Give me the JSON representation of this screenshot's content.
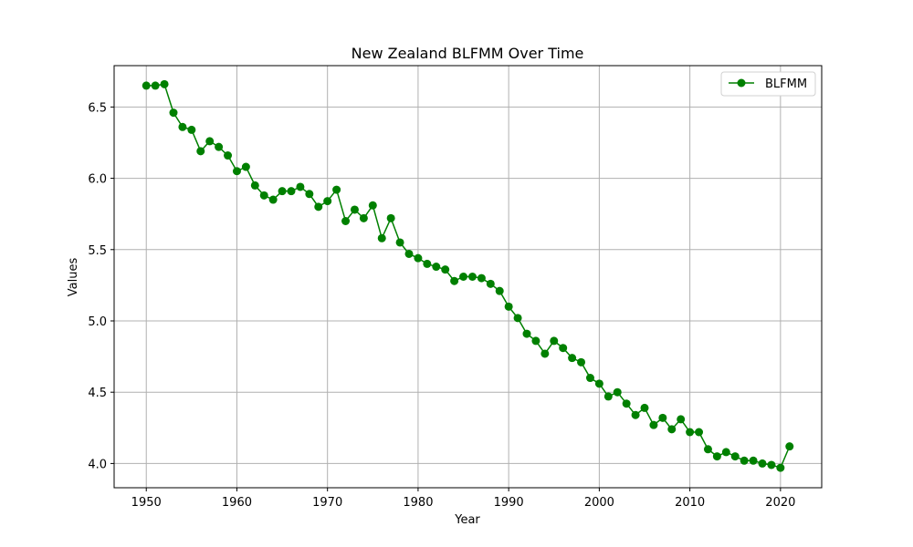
{
  "chart_data": {
    "type": "line",
    "title": "New Zealand BLFMM Over Time",
    "xlabel": "Year",
    "ylabel": "Values",
    "xlim": [
      1946.45,
      2024.55
    ],
    "ylim": [
      3.83,
      6.79
    ],
    "grid": true,
    "legend_position": "top-right",
    "x_ticks": [
      1950,
      1960,
      1970,
      1980,
      1990,
      2000,
      2010,
      2020
    ],
    "y_ticks": [
      4.0,
      4.5,
      5.0,
      5.5,
      6.0,
      6.5
    ],
    "series": [
      {
        "name": "BLFMM",
        "color": "#008000",
        "marker": "circle",
        "x": [
          1950,
          1951,
          1952,
          1953,
          1954,
          1955,
          1956,
          1957,
          1958,
          1959,
          1960,
          1961,
          1962,
          1963,
          1964,
          1965,
          1966,
          1967,
          1968,
          1969,
          1970,
          1971,
          1972,
          1973,
          1974,
          1975,
          1976,
          1977,
          1978,
          1979,
          1980,
          1981,
          1982,
          1983,
          1984,
          1985,
          1986,
          1987,
          1988,
          1989,
          1990,
          1991,
          1992,
          1993,
          1994,
          1995,
          1996,
          1997,
          1998,
          1999,
          2000,
          2001,
          2002,
          2003,
          2004,
          2005,
          2006,
          2007,
          2008,
          2009,
          2010,
          2011,
          2012,
          2013,
          2014,
          2015,
          2016,
          2017,
          2018,
          2019,
          2020,
          2021
        ],
        "values": [
          6.65,
          6.65,
          6.66,
          6.46,
          6.36,
          6.34,
          6.19,
          6.26,
          6.22,
          6.16,
          6.05,
          6.08,
          5.95,
          5.88,
          5.85,
          5.91,
          5.91,
          5.94,
          5.89,
          5.8,
          5.84,
          5.92,
          5.7,
          5.78,
          5.72,
          5.81,
          5.58,
          5.72,
          5.55,
          5.47,
          5.44,
          5.4,
          5.38,
          5.36,
          5.28,
          5.31,
          5.31,
          5.3,
          5.26,
          5.21,
          5.1,
          5.02,
          4.91,
          4.86,
          4.77,
          4.86,
          4.81,
          4.74,
          4.71,
          4.6,
          4.56,
          4.47,
          4.5,
          4.42,
          4.34,
          4.39,
          4.27,
          4.32,
          4.24,
          4.31,
          4.22,
          4.22,
          4.1,
          4.05,
          4.08,
          4.05,
          4.02,
          4.02,
          4.0,
          3.99,
          3.97,
          4.12
        ]
      }
    ]
  }
}
